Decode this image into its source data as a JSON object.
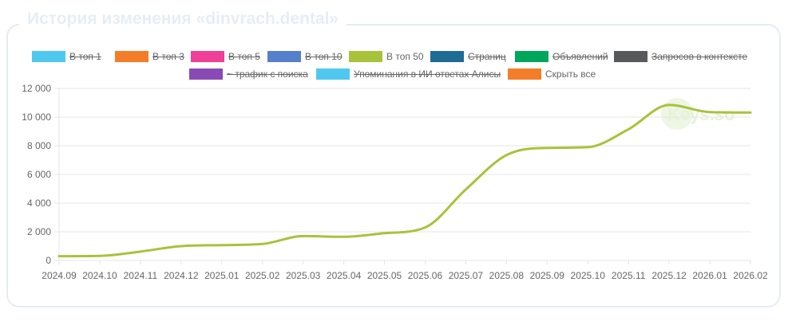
{
  "title": "История изменения «dinvrach.dental»",
  "watermark": "Keys.so",
  "colors": {
    "grid": "#e5e5e5",
    "series": "#a9c23b",
    "axis_text": "#666666"
  },
  "legend": [
    {
      "label": "В топ 1",
      "color": "#4fc8f0",
      "hidden": true
    },
    {
      "label": "В топ 3",
      "color": "#f47d2a",
      "hidden": true
    },
    {
      "label": "В топ 5",
      "color": "#ef3f96",
      "hidden": true
    },
    {
      "label": "В топ 10",
      "color": "#5580cc",
      "hidden": true
    },
    {
      "label": "В топ 50",
      "color": "#a9c23b",
      "hidden": false
    },
    {
      "label": "Страниц",
      "color": "#1e6b94",
      "hidden": true
    },
    {
      "label": "Объявлений",
      "color": "#00a65a",
      "hidden": true
    },
    {
      "label": "Запросов в контексте",
      "color": "#58595b",
      "hidden": true
    },
    {
      "label": "~ трафик с поиска",
      "color": "#8a4ab3",
      "hidden": true
    },
    {
      "label": "Упоминания в ИИ ответах Алисы",
      "color": "#4fc8f0",
      "hidden": true
    },
    {
      "label": "Скрыть все",
      "color": "#f47d2a",
      "hidden": false
    }
  ],
  "chart_data": {
    "type": "line",
    "title": "История изменения «dinvrach.dental»",
    "categories": [
      "2024.09",
      "2024.10",
      "2024.11",
      "2024.12",
      "2025.01",
      "2025.02",
      "2025.03",
      "2025.04",
      "2025.05",
      "2025.06",
      "2025.07",
      "2025.08",
      "2025.09",
      "2025.10",
      "2025.11",
      "2025.12",
      "2026.01",
      "2026.02"
    ],
    "series": [
      {
        "name": "В топ 50",
        "values": [
          300,
          320,
          620,
          1000,
          1070,
          1150,
          1700,
          1650,
          1900,
          2300,
          4950,
          7350,
          7850,
          7900,
          9150,
          10850,
          10350,
          10320
        ]
      }
    ],
    "yticks": [
      "12 000",
      "10 000",
      "8 000",
      "6 000",
      "4 000",
      "2 000",
      "0"
    ],
    "ylim": [
      0,
      12000
    ],
    "grid": true,
    "legend_position": "top"
  }
}
